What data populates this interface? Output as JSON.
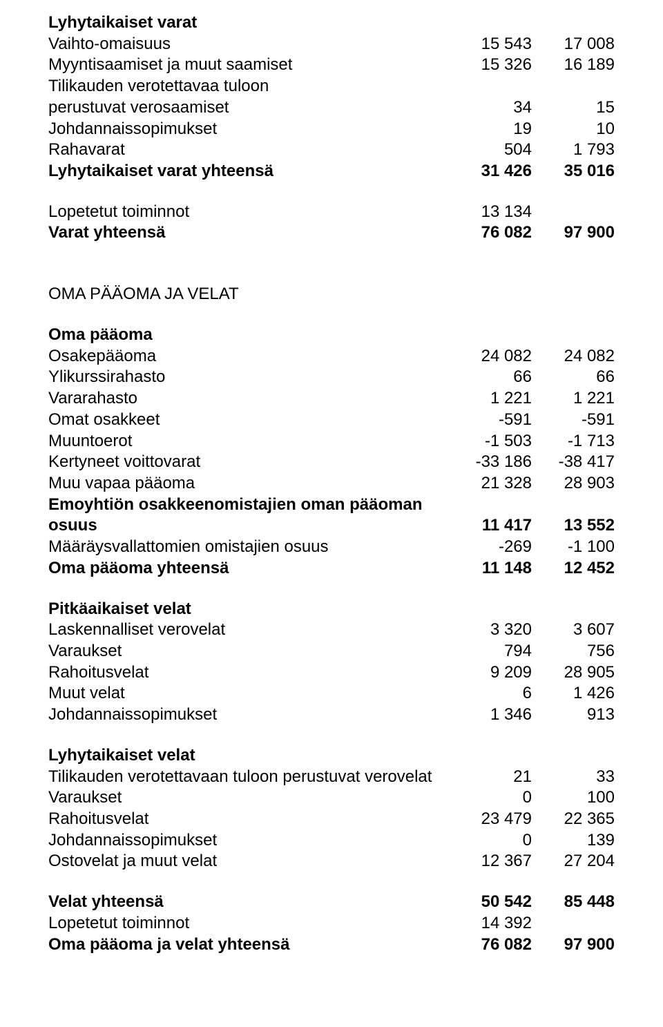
{
  "s1": {
    "heading": "Lyhytaikaiset varat",
    "r1": {
      "label": "Vaihto-omaisuus",
      "c1": "15 543",
      "c2": "17 008"
    },
    "r2": {
      "label": "Myyntisaamiset ja muut saamiset",
      "c1": "15 326",
      "c2": "16 189"
    },
    "r3a": {
      "label": "Tilikauden verotettavaa tuloon"
    },
    "r3b": {
      "label": "perustuvat verosaamiset",
      "c1": "34",
      "c2": "15"
    },
    "r4": {
      "label": "Johdannaissopimukset",
      "c1": "19",
      "c2": "10"
    },
    "r5": {
      "label": "Rahavarat",
      "c1": "504",
      "c2": "1 793"
    },
    "r6": {
      "label": "Lyhytaikaiset varat yhteensä",
      "c1": "31 426",
      "c2": "35 016"
    }
  },
  "s2": {
    "r1": {
      "label": "Lopetetut toiminnot",
      "c1": "13 134",
      "c2": ""
    },
    "r2": {
      "label": "Varat yhteensä",
      "c1": "76 082",
      "c2": "97 900"
    }
  },
  "s3": {
    "heading": "OMA PÄÄOMA JA VELAT"
  },
  "s4": {
    "heading": "Oma pääoma",
    "r1": {
      "label": "Osakepääoma",
      "c1": "24 082",
      "c2": "24 082"
    },
    "r2": {
      "label": "Ylikurssirahasto",
      "c1": "66",
      "c2": "66"
    },
    "r3": {
      "label": "Vararahasto",
      "c1": "1 221",
      "c2": "1 221"
    },
    "r4": {
      "label": "Omat osakkeet",
      "c1": "-591",
      "c2": "-591"
    },
    "r5": {
      "label": "Muuntoerot",
      "c1": "-1 503",
      "c2": "-1 713"
    },
    "r6": {
      "label": "Kertyneet voittovarat",
      "c1": "-33 186",
      "c2": "-38 417"
    },
    "r7": {
      "label": "Muu vapaa pääoma",
      "c1": "21 328",
      "c2": "28 903"
    },
    "r8a": {
      "label": "Emoyhtiön osakkeenomistajien oman pääoman"
    },
    "r8b": {
      "label": "osuus",
      "c1": "11 417",
      "c2": "13 552"
    },
    "r9": {
      "label": "Määräysvallattomien omistajien osuus",
      "c1": "-269",
      "c2": "-1 100"
    },
    "r10": {
      "label": "Oma pääoma yhteensä",
      "c1": "11 148",
      "c2": "12 452"
    }
  },
  "s5": {
    "heading": "Pitkäaikaiset velat",
    "r1": {
      "label": "Laskennalliset verovelat",
      "c1": "3 320",
      "c2": "3 607"
    },
    "r2": {
      "label": "Varaukset",
      "c1": "794",
      "c2": "756"
    },
    "r3": {
      "label": "Rahoitusvelat",
      "c1": "9 209",
      "c2": "28 905"
    },
    "r4": {
      "label": "Muut velat",
      "c1": "6",
      "c2": "1 426"
    },
    "r5": {
      "label": "Johdannaissopimukset",
      "c1": "1 346",
      "c2": "913"
    }
  },
  "s6": {
    "heading": "Lyhytaikaiset velat",
    "r1": {
      "label": "Tilikauden verotettavaan tuloon perustuvat verovelat",
      "c1": "21",
      "c2": "33"
    },
    "r2": {
      "label": "Varaukset",
      "c1": "0",
      "c2": "100"
    },
    "r3": {
      "label": "Rahoitusvelat",
      "c1": "23 479",
      "c2": "22 365"
    },
    "r4": {
      "label": "Johdannaissopimukset",
      "c1": "0",
      "c2": "139"
    },
    "r5": {
      "label": "Ostovelat ja muut velat",
      "c1": "12 367",
      "c2": "27 204"
    }
  },
  "s7": {
    "r1": {
      "label": "Velat yhteensä",
      "c1": "50 542",
      "c2": "85 448"
    },
    "r2": {
      "label": "Lopetetut toiminnot",
      "c1": "14 392",
      "c2": ""
    },
    "r3": {
      "label": "Oma pääoma ja velat yhteensä",
      "c1": "76 082",
      "c2": "97 900"
    }
  }
}
